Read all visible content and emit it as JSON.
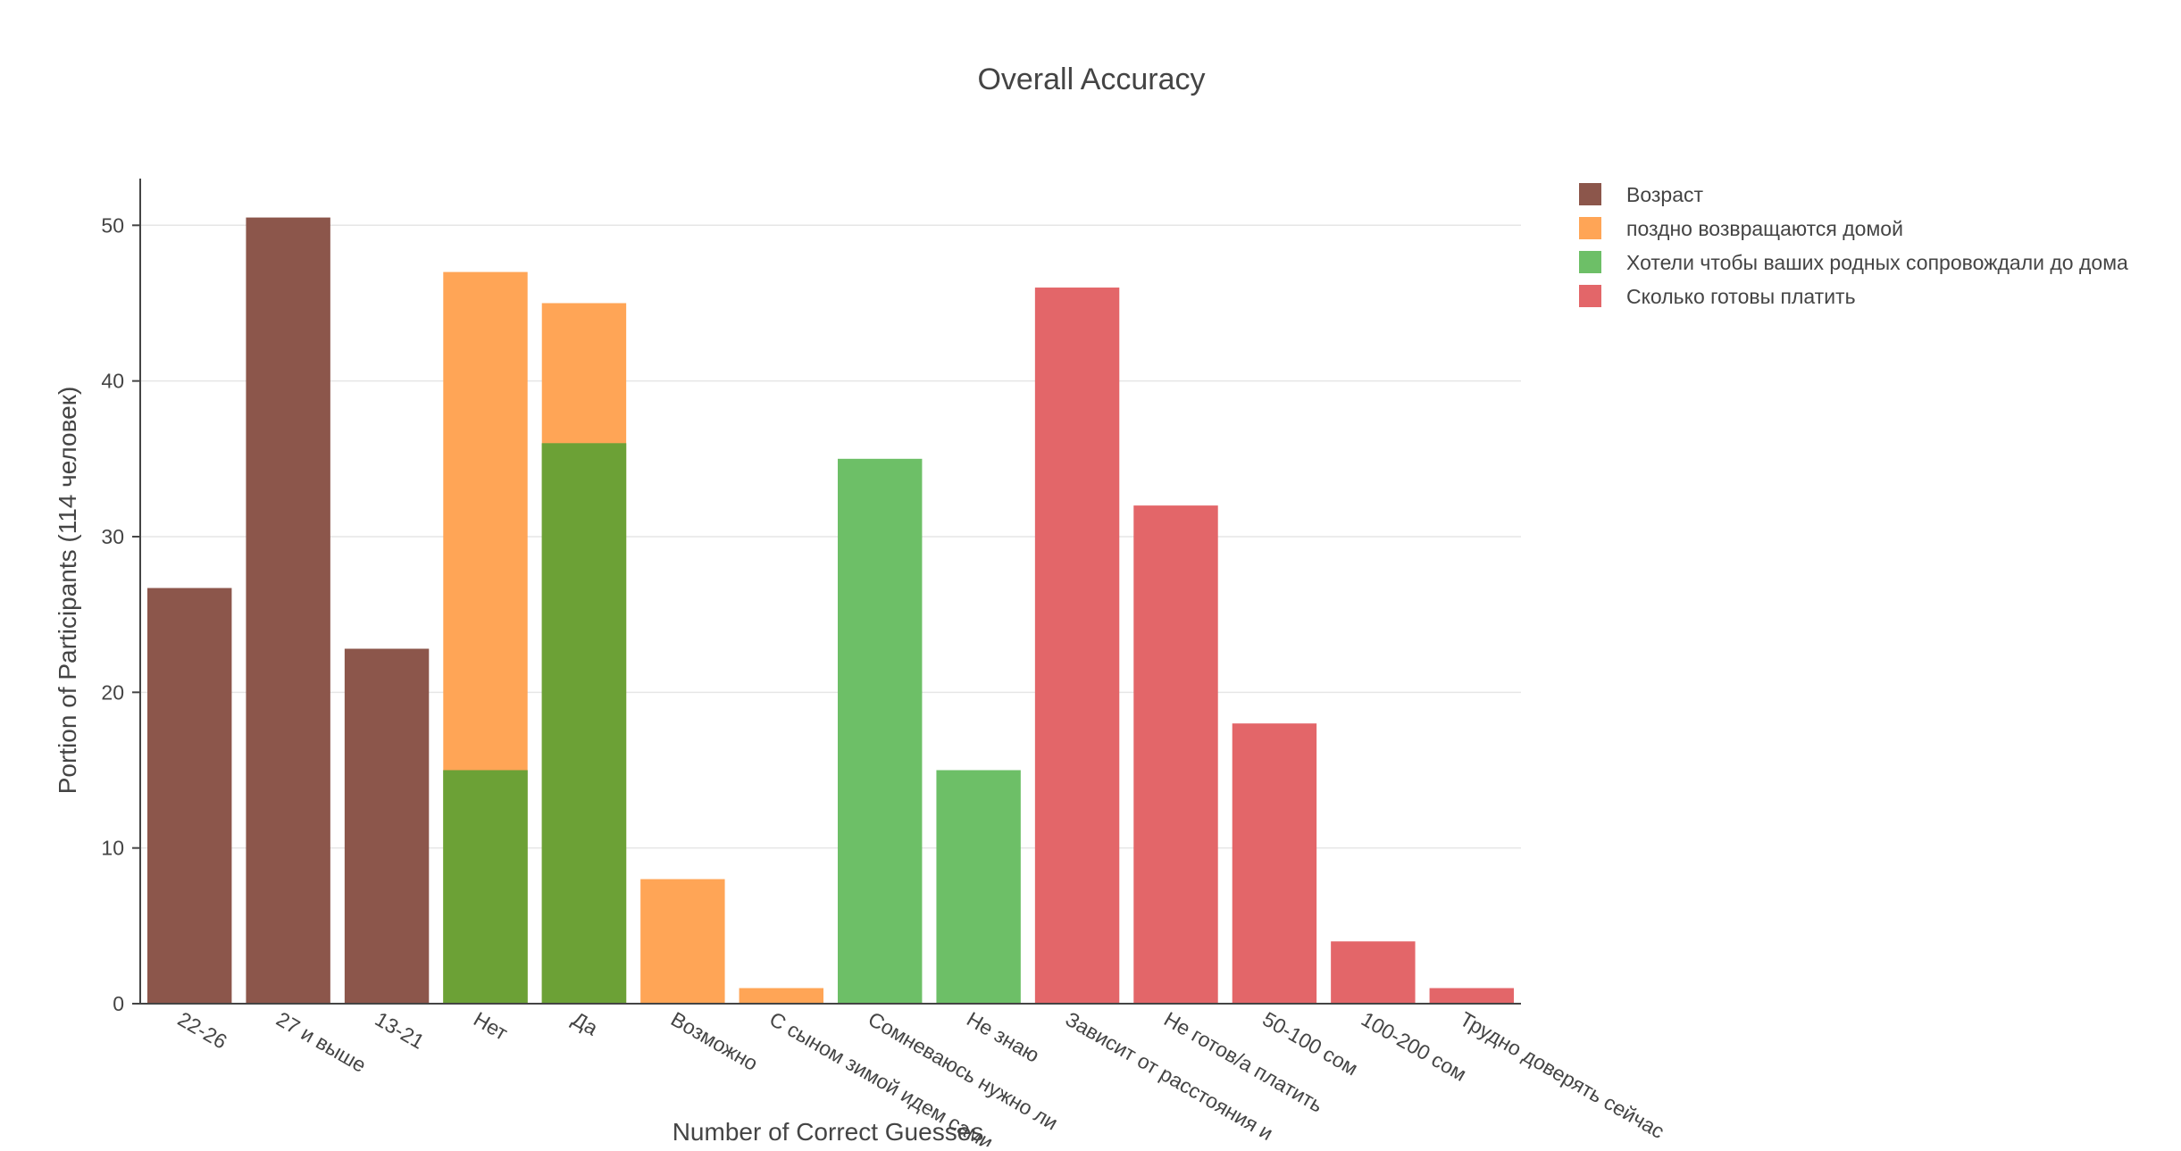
{
  "chart_data": {
    "type": "bar",
    "barmode": "overlay",
    "title": "Overall Accuracy",
    "xlabel": "Number of Correct Guesses",
    "ylabel": "Portion of Participants (114 человек)",
    "ylim": [
      0,
      53
    ],
    "yticks": [
      0,
      10,
      20,
      30,
      40,
      50
    ],
    "grid": true,
    "legend_position": "top-right",
    "categories": [
      "22-26",
      "27 и выше",
      "13-21",
      "Нет",
      "Да",
      "Возможно",
      "С сыном зимой идем сами",
      "Сомневаюсь нужно ли",
      "Не знаю",
      "Зависит от расстояния и",
      "Не готов/а платить",
      "50-100 сом",
      "100-200 сом",
      "Трудно доверять сейчас"
    ],
    "series": [
      {
        "name": "Возраст",
        "color": "#8c564b",
        "points": [
          {
            "x": "22-26",
            "y": 26.7
          },
          {
            "x": "27 и выше",
            "y": 50.5
          },
          {
            "x": "13-21",
            "y": 22.8
          }
        ]
      },
      {
        "name": "поздно возвращаются домой",
        "color": "#ffa556",
        "points": [
          {
            "x": "Нет",
            "y": 47
          },
          {
            "x": "Да",
            "y": 45
          },
          {
            "x": "Возможно",
            "y": 8
          },
          {
            "x": "С сыном зимой идем сами",
            "y": 1
          }
        ]
      },
      {
        "name": "Хотели чтобы ваших родных сопровождали до дома",
        "color": "#6dbf67",
        "points": [
          {
            "x": "Нет",
            "y": 15
          },
          {
            "x": "Да",
            "y": 36
          },
          {
            "x": "Сомневаюсь нужно ли",
            "y": 35
          },
          {
            "x": "Не знаю",
            "y": 15
          }
        ]
      },
      {
        "name": "Сколько готовы платить",
        "color": "#e36669",
        "points": [
          {
            "x": "Зависит от расстояния и",
            "y": 46
          },
          {
            "x": "Не готов/а платить",
            "y": 32
          },
          {
            "x": "50-100 сом",
            "y": 18
          },
          {
            "x": "100-200 сом",
            "y": 4
          },
          {
            "x": "Трудно доверять сейчас",
            "y": 1
          }
        ]
      }
    ],
    "overlap_color": "#6ca136"
  }
}
